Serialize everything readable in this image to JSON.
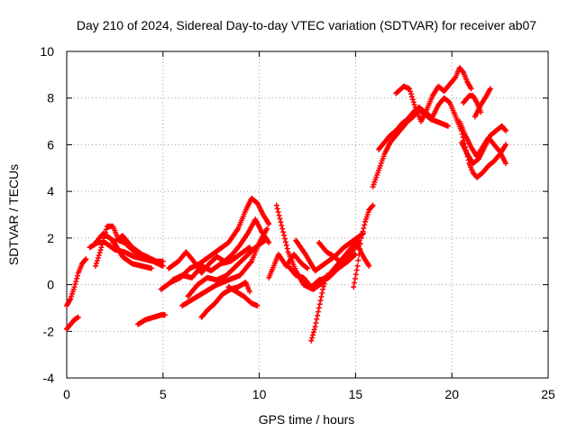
{
  "chart_data": {
    "type": "scatter",
    "title": "Day 210 of 2024, Sidereal Day-to-day VTEC variation (SDTVAR) for receiver ab07",
    "xlabel": "GPS time / hours",
    "ylabel": "SDTVAR / TECUs",
    "xlim": [
      0,
      25
    ],
    "ylim": [
      -4,
      10
    ],
    "xticks": [
      0,
      5,
      10,
      15,
      20,
      25
    ],
    "yticks": [
      -4,
      -2,
      0,
      2,
      4,
      6,
      8,
      10
    ],
    "xtick_labels": [
      "0",
      "5",
      "10",
      "15",
      "20",
      "25"
    ],
    "ytick_labels": [
      "-4",
      "-2",
      "0",
      "2",
      "4",
      "6",
      "8",
      "10"
    ],
    "grid": true,
    "marker": "+",
    "color": "#ff0000",
    "series": [
      {
        "tracks": [
          [
            [
              0.0,
              -0.9
            ],
            [
              0.2,
              -0.6
            ],
            [
              0.4,
              -0.1
            ],
            [
              0.6,
              0.5
            ],
            [
              0.8,
              0.9
            ],
            [
              1.0,
              1.1
            ]
          ],
          [
            [
              0.0,
              -1.9
            ],
            [
              0.2,
              -1.7
            ],
            [
              0.4,
              -1.5
            ],
            [
              0.6,
              -1.4
            ]
          ],
          [
            [
              1.5,
              0.8
            ],
            [
              1.8,
              1.6
            ],
            [
              2.1,
              2.5
            ],
            [
              2.4,
              2.5
            ],
            [
              2.7,
              1.9
            ],
            [
              3.0,
              1.8
            ],
            [
              3.4,
              1.5
            ],
            [
              3.8,
              1.3
            ],
            [
              4.2,
              1.1
            ],
            [
              4.6,
              1.0
            ],
            [
              5.0,
              1.0
            ]
          ],
          [
            [
              1.2,
              1.6
            ],
            [
              1.6,
              1.8
            ],
            [
              2.0,
              1.8
            ],
            [
              2.5,
              1.5
            ],
            [
              3.0,
              1.4
            ],
            [
              3.5,
              1.2
            ],
            [
              4.0,
              1.1
            ],
            [
              4.5,
              1.0
            ],
            [
              5.0,
              0.8
            ]
          ],
          [
            [
              1.5,
              1.8
            ],
            [
              1.9,
              2.2
            ],
            [
              2.4,
              1.9
            ],
            [
              2.9,
              1.2
            ],
            [
              3.4,
              0.9
            ],
            [
              3.9,
              0.8
            ],
            [
              4.4,
              0.7
            ]
          ],
          [
            [
              2.4,
              1.8
            ],
            [
              2.9,
              2.1
            ],
            [
              3.4,
              1.6
            ],
            [
              3.9,
              1.3
            ],
            [
              4.4,
              1.1
            ],
            [
              4.9,
              0.9
            ]
          ],
          [
            [
              3.7,
              -1.7
            ],
            [
              4.1,
              -1.5
            ],
            [
              4.5,
              -1.4
            ],
            [
              4.9,
              -1.3
            ],
            [
              5.1,
              -1.3
            ]
          ],
          [
            [
              4.9,
              -0.2
            ],
            [
              5.4,
              0.1
            ],
            [
              5.9,
              0.3
            ],
            [
              6.4,
              0.7
            ],
            [
              6.9,
              0.9
            ],
            [
              7.4,
              1.2
            ],
            [
              7.9,
              1.5
            ],
            [
              8.4,
              1.8
            ],
            [
              8.9,
              2.4
            ],
            [
              9.3,
              3.2
            ],
            [
              9.6,
              3.7
            ],
            [
              9.9,
              3.5
            ],
            [
              10.2,
              3.0
            ],
            [
              10.5,
              2.6
            ]
          ],
          [
            [
              5.3,
              0.7
            ],
            [
              5.8,
              1.0
            ],
            [
              6.2,
              1.4
            ],
            [
              6.6,
              1.0
            ],
            [
              7.0,
              0.5
            ],
            [
              7.4,
              0.9
            ],
            [
              7.8,
              1.2
            ],
            [
              8.2,
              1.0
            ],
            [
              8.6,
              1.3
            ],
            [
              9.0,
              1.7
            ],
            [
              9.4,
              2.2
            ],
            [
              9.8,
              2.8
            ],
            [
              10.1,
              2.3
            ],
            [
              10.5,
              1.8
            ]
          ],
          [
            [
              6.0,
              -0.9
            ],
            [
              6.6,
              -0.6
            ],
            [
              7.2,
              -0.3
            ],
            [
              7.8,
              0.0
            ],
            [
              8.4,
              0.2
            ],
            [
              9.0,
              0.4
            ],
            [
              9.6,
              1.0
            ],
            [
              10.0,
              1.8
            ],
            [
              10.4,
              2.4
            ]
          ],
          [
            [
              5.5,
              0.2
            ],
            [
              6.0,
              0.4
            ],
            [
              6.5,
              0.3
            ],
            [
              7.0,
              0.8
            ],
            [
              7.5,
              0.6
            ],
            [
              8.0,
              0.9
            ],
            [
              8.5,
              1.0
            ],
            [
              9.0,
              1.3
            ],
            [
              9.5,
              1.6
            ]
          ],
          [
            [
              6.3,
              -0.5
            ],
            [
              6.8,
              0.0
            ],
            [
              7.3,
              0.3
            ],
            [
              7.8,
              0.2
            ],
            [
              8.3,
              0.4
            ],
            [
              8.8,
              0.8
            ],
            [
              9.3,
              1.2
            ],
            [
              9.8,
              1.6
            ],
            [
              10.3,
              1.9
            ]
          ],
          [
            [
              7.0,
              -1.4
            ],
            [
              7.3,
              -1.1
            ],
            [
              7.7,
              -0.8
            ],
            [
              8.1,
              -0.4
            ],
            [
              8.5,
              -0.2
            ],
            [
              8.9,
              -0.1
            ],
            [
              9.3,
              0.1
            ],
            [
              9.5,
              -0.3
            ]
          ],
          [
            [
              8.4,
              -0.1
            ],
            [
              8.8,
              -0.3
            ],
            [
              9.2,
              -0.5
            ],
            [
              9.6,
              -0.8
            ],
            [
              9.9,
              -0.9
            ]
          ],
          [
            [
              10.5,
              0.3
            ],
            [
              10.8,
              0.9
            ],
            [
              11.0,
              1.3
            ],
            [
              11.4,
              0.8
            ],
            [
              11.8,
              1.3
            ],
            [
              12.2,
              0.9
            ],
            [
              12.5,
              0.7
            ]
          ],
          [
            [
              10.9,
              3.4
            ],
            [
              11.2,
              2.4
            ],
            [
              11.5,
              1.4
            ],
            [
              11.9,
              0.6
            ],
            [
              12.3,
              0.0
            ],
            [
              12.8,
              -0.2
            ],
            [
              13.3,
              0.1
            ],
            [
              13.8,
              0.6
            ],
            [
              14.3,
              1.1
            ],
            [
              14.8,
              1.6
            ],
            [
              15.2,
              1.9
            ]
          ],
          [
            [
              11.5,
              0.8
            ],
            [
              11.9,
              0.4
            ],
            [
              12.3,
              0.3
            ],
            [
              12.7,
              -0.1
            ],
            [
              13.1,
              0.2
            ],
            [
              13.6,
              0.3
            ],
            [
              14.1,
              0.7
            ],
            [
              14.6,
              1.0
            ],
            [
              15.0,
              1.3
            ]
          ],
          [
            [
              11.9,
              1.9
            ],
            [
              12.4,
              1.3
            ],
            [
              12.9,
              0.6
            ],
            [
              13.4,
              0.9
            ],
            [
              13.9,
              1.2
            ],
            [
              14.4,
              1.6
            ],
            [
              14.9,
              1.9
            ],
            [
              15.4,
              2.2
            ]
          ],
          [
            [
              12.7,
              -2.4
            ],
            [
              12.9,
              -1.8
            ],
            [
              13.1,
              -1.0
            ],
            [
              13.3,
              -0.2
            ],
            [
              13.5,
              0.4
            ]
          ],
          [
            [
              13.1,
              1.8
            ],
            [
              13.5,
              1.4
            ],
            [
              13.9,
              1.2
            ],
            [
              14.3,
              0.9
            ],
            [
              14.7,
              1.3
            ],
            [
              15.1,
              1.7
            ],
            [
              15.4,
              1.2
            ],
            [
              15.7,
              0.8
            ]
          ],
          [
            [
              14.9,
              -0.1
            ],
            [
              15.1,
              0.8
            ],
            [
              15.3,
              2.0
            ],
            [
              15.5,
              2.7
            ],
            [
              15.7,
              3.2
            ],
            [
              15.9,
              3.4
            ]
          ],
          [
            [
              15.9,
              4.2
            ],
            [
              16.2,
              4.9
            ],
            [
              16.5,
              5.6
            ],
            [
              16.8,
              6.1
            ],
            [
              17.1,
              6.4
            ],
            [
              17.4,
              6.7
            ],
            [
              17.7,
              7.0
            ],
            [
              18.0,
              7.2
            ],
            [
              18.3,
              7.5
            ],
            [
              18.6,
              7.3
            ],
            [
              18.9,
              7.1
            ],
            [
              19.2,
              7.0
            ],
            [
              19.5,
              6.9
            ],
            [
              19.8,
              6.8
            ]
          ],
          [
            [
              16.2,
              5.8
            ],
            [
              16.5,
              6.1
            ],
            [
              16.8,
              6.4
            ],
            [
              17.1,
              6.6
            ],
            [
              17.4,
              6.9
            ],
            [
              17.7,
              7.1
            ],
            [
              18.0,
              7.4
            ],
            [
              18.3,
              7.6
            ],
            [
              18.6,
              7.4
            ],
            [
              18.9,
              7.2
            ]
          ],
          [
            [
              17.1,
              8.2
            ],
            [
              17.5,
              8.5
            ],
            [
              17.8,
              8.4
            ],
            [
              18.1,
              7.6
            ],
            [
              18.4,
              7.0
            ],
            [
              18.7,
              7.5
            ],
            [
              19.0,
              8.1
            ],
            [
              19.3,
              8.5
            ],
            [
              19.6,
              8.3
            ],
            [
              19.9,
              8.6
            ],
            [
              20.2,
              8.9
            ],
            [
              20.4,
              9.3
            ],
            [
              20.6,
              9.1
            ],
            [
              20.8,
              8.7
            ],
            [
              21.0,
              8.4
            ]
          ],
          [
            [
              19.0,
              7.2
            ],
            [
              19.3,
              7.7
            ],
            [
              19.6,
              8.0
            ],
            [
              19.9,
              7.8
            ],
            [
              20.2,
              7.2
            ],
            [
              20.5,
              6.6
            ],
            [
              20.7,
              5.9
            ],
            [
              20.9,
              5.2
            ],
            [
              21.1,
              4.8
            ],
            [
              21.3,
              4.6
            ],
            [
              21.6,
              4.8
            ],
            [
              21.9,
              5.1
            ],
            [
              22.2,
              5.3
            ],
            [
              22.5,
              5.6
            ],
            [
              22.8,
              6.0
            ]
          ],
          [
            [
              20.4,
              7.0
            ],
            [
              20.7,
              6.4
            ],
            [
              21.0,
              5.9
            ],
            [
              21.3,
              5.5
            ],
            [
              21.6,
              5.9
            ],
            [
              21.9,
              6.3
            ],
            [
              22.2,
              6.0
            ],
            [
              22.5,
              5.7
            ],
            [
              22.8,
              5.2
            ]
          ],
          [
            [
              20.5,
              6.1
            ],
            [
              20.8,
              5.6
            ],
            [
              21.1,
              5.2
            ],
            [
              21.4,
              5.4
            ],
            [
              21.7,
              5.9
            ],
            [
              22.0,
              6.4
            ],
            [
              22.3,
              6.6
            ],
            [
              22.6,
              6.8
            ],
            [
              22.8,
              6.6
            ]
          ],
          [
            [
              21.2,
              7.2
            ],
            [
              21.5,
              7.7
            ],
            [
              21.8,
              8.1
            ],
            [
              22.0,
              8.4
            ]
          ],
          [
            [
              20.6,
              7.8
            ],
            [
              20.9,
              8.1
            ],
            [
              21.1,
              8.1
            ],
            [
              21.3,
              7.8
            ],
            [
              21.5,
              7.4
            ]
          ]
        ]
      }
    ]
  }
}
